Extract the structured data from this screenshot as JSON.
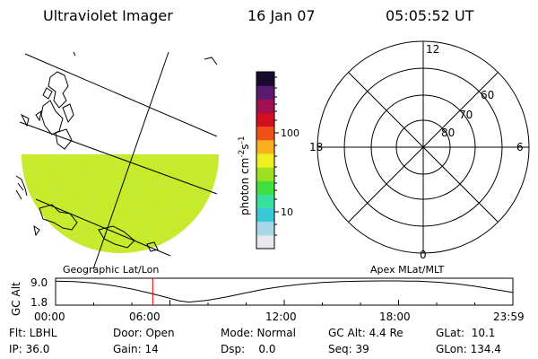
{
  "header": {
    "instrument": "Ultraviolet Imager",
    "date": "16 Jan 07",
    "time": "05:05:52 UT"
  },
  "panels": {
    "left_label": "Geographic Lat/Lon",
    "right_label": "Apex MLat/MLT"
  },
  "colorbar": {
    "unit_base": "photon cm",
    "unit_exp1": "-2",
    "unit_mid": "s",
    "unit_exp2": "-1",
    "ticks": [
      "100",
      "10"
    ],
    "scale": "log",
    "colors": [
      "#e8e8ec",
      "#a8d8e8",
      "#38c8d8",
      "#38e0a0",
      "#40e040",
      "#a0e020",
      "#f0f020",
      "#f8b020",
      "#f05018",
      "#d01020",
      "#a01050",
      "#5a1a6e",
      "#1a0a30"
    ]
  },
  "polar": {
    "mlt_labels": {
      "top": "12",
      "left": "18",
      "right": "6",
      "bottom": "0"
    },
    "mlat_rings": [
      "60",
      "70",
      "80"
    ]
  },
  "chart_data": {
    "type": "line",
    "title": "",
    "ylabel": "GC Alt",
    "y_ticks": [
      "9.0",
      "1.8"
    ],
    "ylim": [
      1.8,
      9.0
    ],
    "x_ticks": [
      "00:00",
      "06:00",
      "12:00",
      "18:00",
      "23:59"
    ],
    "xlim": [
      0,
      24
    ],
    "series": [
      {
        "values_x": [
          0,
          1,
          2,
          3,
          4,
          5,
          6,
          6.5,
          7,
          8,
          9,
          10,
          11,
          12,
          13,
          14,
          15,
          16,
          17,
          18,
          18.5,
          19,
          20,
          21,
          22,
          23,
          23.98
        ],
        "values_y": [
          8.95,
          8.8,
          8.3,
          7.5,
          6.4,
          5.0,
          3.4,
          2.6,
          2.2,
          2.8,
          3.9,
          5.2,
          6.4,
          7.3,
          8.0,
          8.5,
          8.8,
          8.95,
          9.0,
          9.0,
          8.95,
          8.9,
          8.6,
          8.1,
          7.3,
          6.3,
          5.3
        ]
      }
    ],
    "marker_x": 5.1
  },
  "footer": {
    "flt": "Flt: LBHL",
    "ip": "IP: 36.0",
    "door": "Door: Open",
    "gain": "Gain: 14",
    "mode": "Mode: Normal",
    "dsp": "Dsp:    0.0",
    "gcalt": "GC Alt: 4.4 Re",
    "seq": "Seq: 39",
    "glat": "GLat:  10.1",
    "glon": "GLon: 134.4"
  }
}
